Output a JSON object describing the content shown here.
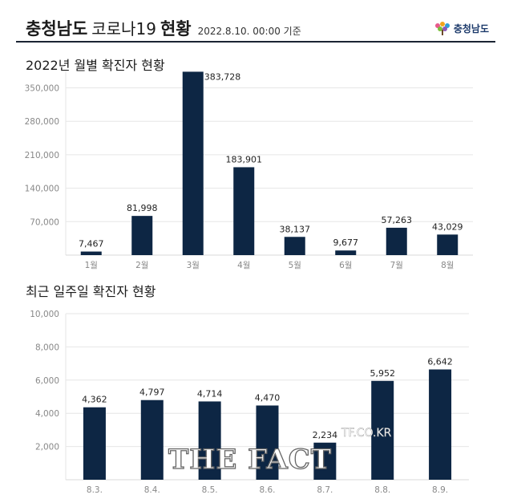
{
  "header": {
    "title_bold": "충청남도",
    "title_normal": "코로나19",
    "title_bold2": "현황",
    "date": "2022.8.10. 00:00 기준",
    "logo_text": "충청남도"
  },
  "watermark": {
    "main": "THE FACT",
    "sub": "TF.CO.KR"
  },
  "colors": {
    "bar": "#0d2644",
    "grid": "#e6e6e6",
    "axis_text": "#888888"
  },
  "chart_data": [
    {
      "type": "bar",
      "title": "2022년 월별 확진자 현황",
      "categories": [
        "1월",
        "2월",
        "3월",
        "4월",
        "5월",
        "6월",
        "7월",
        "8월"
      ],
      "values": [
        7467,
        81998,
        383728,
        183901,
        38137,
        9677,
        57263,
        43029
      ],
      "value_labels": [
        "7,467",
        "81,998",
        "383,728",
        "183,901",
        "38,137",
        "9,677",
        "57,263",
        "43,029"
      ],
      "yticks": [
        70000,
        140000,
        210000,
        280000,
        350000
      ],
      "ytick_labels": [
        "70,000",
        "140,000",
        "210,000",
        "280,000",
        "350,000"
      ],
      "ylim": [
        0,
        383728
      ],
      "grid": true
    },
    {
      "type": "bar",
      "title": "최근 일주일 확진자 현황",
      "categories": [
        "8.3.",
        "8.4.",
        "8.5.",
        "8.6.",
        "8.7.",
        "8.8.",
        "8.9."
      ],
      "values": [
        4362,
        4797,
        4714,
        4470,
        2234,
        5952,
        6642
      ],
      "value_labels": [
        "4,362",
        "4,797",
        "4,714",
        "4,470",
        "2,234",
        "5,952",
        "6,642"
      ],
      "yticks": [
        2000,
        4000,
        6000,
        8000,
        10000
      ],
      "ytick_labels": [
        "2,000",
        "4,000",
        "6,000",
        "8,000",
        "10,000"
      ],
      "ylim": [
        0,
        10000
      ],
      "grid": true
    }
  ]
}
